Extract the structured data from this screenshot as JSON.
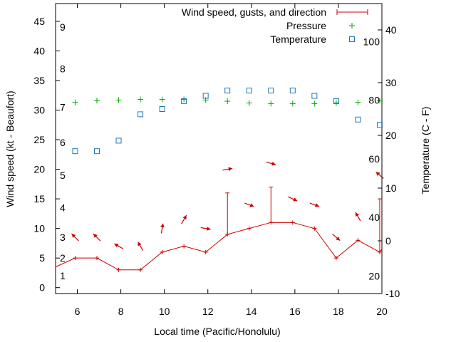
{
  "chart_data": {
    "type": "line",
    "title": "",
    "xlabel": "Local time (Pacific/Honolulu)",
    "ylabel_left": "Wind speed (kt - Beaufort)",
    "ylabel_right": "Temperature (C - F)",
    "xlim": [
      5,
      20
    ],
    "ylim_left": [
      -1,
      48
    ],
    "ylim_right": [
      -10,
      45
    ],
    "x_ticks": [
      6,
      8,
      10,
      12,
      14,
      16,
      18,
      20
    ],
    "x_tick_labels": [
      "6",
      "8",
      "10",
      "12",
      "14",
      "16",
      "18",
      "20"
    ],
    "left_ticks": [
      0,
      5,
      10,
      15,
      20,
      25,
      30,
      35,
      40,
      45
    ],
    "left_tick_labels": [
      "0",
      "5",
      "10",
      "15",
      "20",
      "25",
      "30",
      "35",
      "40",
      "45"
    ],
    "right_ticks": [
      -10,
      0,
      10,
      20,
      30,
      40
    ],
    "right_tick_labels": [
      "-10",
      "0",
      "10",
      "20",
      "30",
      "40"
    ],
    "beaufort_labels": [
      {
        "value": 1,
        "label": "1"
      },
      {
        "value": 2,
        "label": "2"
      },
      {
        "value": 3,
        "label": "3"
      },
      {
        "value": 4,
        "label": "4"
      },
      {
        "value": 5,
        "label": "5"
      },
      {
        "value": 6,
        "label": "6"
      },
      {
        "value": 7,
        "label": "7"
      },
      {
        "value": 8,
        "label": "8"
      },
      {
        "value": 9,
        "label": "9"
      }
    ],
    "fahrenheit_labels": [
      {
        "value": 20,
        "label": "20"
      },
      {
        "value": 40,
        "label": "40"
      },
      {
        "value": 60,
        "label": "60"
      },
      {
        "value": 80,
        "label": "80"
      },
      {
        "value": 100,
        "label": "100"
      }
    ],
    "series": [
      {
        "name": "Wind speed, gusts, and direction",
        "axis": "left",
        "color": "#cc0000",
        "x": [
          5,
          5.9,
          6.9,
          7.9,
          8.9,
          9.9,
          10.9,
          11.9,
          12.9,
          13.9,
          14.9,
          15.9,
          16.9,
          17.9,
          18.9,
          19.9,
          20
        ],
        "values": [
          3.5,
          5,
          5,
          3,
          3,
          6,
          7,
          6,
          9,
          10,
          11,
          11,
          10,
          5,
          8,
          6,
          6.5
        ],
        "gusts": [
          {
            "x": 12.9,
            "value": 16
          },
          {
            "x": 14.9,
            "value": 17
          },
          {
            "x": 19.9,
            "value": 15
          }
        ],
        "directions": [
          {
            "x": 5.9,
            "y": 8.5,
            "angle_deg": -135
          },
          {
            "x": 6.9,
            "y": 8.5,
            "angle_deg": -135
          },
          {
            "x": 7.9,
            "y": 7,
            "angle_deg": -150
          },
          {
            "x": 8.9,
            "y": 7,
            "angle_deg": -120
          },
          {
            "x": 9.9,
            "y": 10,
            "angle_deg": -80
          },
          {
            "x": 10.9,
            "y": 11.5,
            "angle_deg": -60
          },
          {
            "x": 11.9,
            "y": 10,
            "angle_deg": 10
          },
          {
            "x": 12.9,
            "y": 20,
            "angle_deg": -10
          },
          {
            "x": 13.9,
            "y": 14,
            "angle_deg": 20
          },
          {
            "x": 14.9,
            "y": 21,
            "angle_deg": 15
          },
          {
            "x": 15.9,
            "y": 15,
            "angle_deg": 25
          },
          {
            "x": 16.9,
            "y": 14,
            "angle_deg": 20
          },
          {
            "x": 17.9,
            "y": 8.5,
            "angle_deg": 40
          },
          {
            "x": 18.9,
            "y": 12,
            "angle_deg": -120
          },
          {
            "x": 19.9,
            "y": 19,
            "angle_deg": -140
          }
        ]
      },
      {
        "name": "Pressure",
        "axis": "left",
        "color": "#00aa00",
        "marker": "plus",
        "x": [
          5.9,
          6.9,
          7.9,
          8.9,
          9.9,
          10.9,
          11.9,
          12.9,
          13.9,
          14.9,
          15.9,
          16.9,
          17.9,
          18.9,
          19.9
        ],
        "values": [
          31.3,
          31.6,
          31.7,
          31.8,
          31.8,
          31.8,
          31.7,
          31.5,
          31.2,
          31.1,
          31.1,
          31.1,
          31.2,
          31.3,
          31.6
        ]
      },
      {
        "name": "Temperature",
        "axis": "right",
        "color": "#1f77b4",
        "marker": "square",
        "x": [
          5.9,
          6.9,
          7.9,
          8.9,
          9.9,
          10.9,
          11.9,
          12.9,
          13.9,
          14.9,
          15.9,
          16.9,
          17.9,
          18.9,
          19.9
        ],
        "values": [
          17,
          17,
          19,
          24,
          25,
          26.5,
          27.5,
          28.5,
          28.5,
          28.5,
          28.5,
          27.5,
          26.5,
          23,
          22
        ]
      }
    ],
    "legend_position": "top-right"
  }
}
